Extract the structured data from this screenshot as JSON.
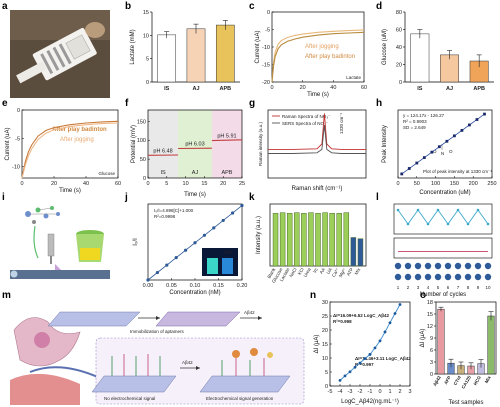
{
  "figure": {
    "panel_letters": [
      "a",
      "b",
      "c",
      "d",
      "e",
      "f",
      "g",
      "h",
      "i",
      "j",
      "k",
      "l",
      "m",
      "n",
      "o"
    ]
  },
  "colors": {
    "peach": "#f7d3b6",
    "gold": "#e8c25a",
    "orange": "#f0a45a",
    "olive": "#7ea03c",
    "blue": "#2e5a98",
    "pink": "#e89aa0",
    "lavender": "#c0bce0",
    "green_bar": "#9ccf5a"
  },
  "panels": {
    "b": {
      "ylabel": "Lactate (mM)",
      "chart_data": {
        "type": "bar",
        "categories": [
          "IS",
          "AJ",
          "APB"
        ],
        "values": [
          10.1,
          11.4,
          12.2
        ],
        "errors": [
          0.7,
          1.0,
          1.0
        ],
        "ylim": [
          0,
          15
        ],
        "yticks": [
          "0",
          "5",
          "10",
          "15"
        ],
        "ylabel": "Lactate (mM)"
      }
    },
    "c": {
      "xlabel": "Time (s)",
      "ylabel": "Current (uA)",
      "corner_label": "Lactate",
      "annotations": [
        "After jogging",
        "After play badinton"
      ],
      "chart_data": {
        "type": "line",
        "xlim": [
          0,
          60
        ],
        "xticks": [
          "0",
          "20",
          "40",
          "60"
        ],
        "ylim": [
          -20,
          0
        ],
        "yticks": [
          "-20",
          "-15",
          "-10",
          "-5",
          "0"
        ],
        "series": [
          {
            "x": [
              0,
              1,
              2,
              4,
              6,
              10,
              15,
              20,
              30,
              40,
              50,
              60
            ],
            "y": [
              -20,
              -14.5,
              -11.5,
              -9.2,
              -8.2,
              -7.3,
              -6.7,
              -6.3,
              -5.8,
              -5.5,
              -5.3,
              -5.1
            ]
          },
          {
            "x": [
              0,
              1,
              2,
              4,
              6,
              10,
              15,
              20,
              30,
              40,
              50,
              60
            ],
            "y": [
              -20,
              -15.5,
              -12.8,
              -10.5,
              -9.4,
              -8.4,
              -7.7,
              -7.2,
              -6.6,
              -6.2,
              -6.0,
              -5.8
            ]
          }
        ]
      }
    },
    "d": {
      "ylabel": "Glucose (uM)",
      "chart_data": {
        "type": "bar",
        "categories": [
          "IS",
          "AJ",
          "APB"
        ],
        "values": [
          55,
          31,
          24
        ],
        "errors": [
          5,
          5,
          7
        ],
        "ylim": [
          0,
          80
        ],
        "yticks": [
          "0",
          "20",
          "40",
          "60",
          "80"
        ],
        "ylabel": "Glucose (uM)"
      }
    },
    "e": {
      "xlabel": "Time (s)",
      "ylabel": "Current (uA)",
      "corner_label": "Glucose",
      "annotations": [
        "After play badinton",
        "After jogging"
      ],
      "chart_data": {
        "type": "line",
        "xlim": [
          0,
          60
        ],
        "xticks": [
          "0",
          "20",
          "40",
          "60"
        ],
        "ylim": [
          -12,
          0
        ],
        "yticks": [
          "0",
          "-5",
          "-10"
        ],
        "series": [
          {
            "x": [
              0,
              2,
              4,
              6,
              10,
              15,
              20,
              30,
              40,
              50,
              60
            ],
            "y": [
              -12,
              -9.2,
              -7.4,
              -6.2,
              -4.6,
              -3.6,
              -3.1,
              -2.6,
              -2.3,
              -2.1,
              -2.0
            ]
          },
          {
            "x": [
              0,
              2,
              4,
              6,
              10,
              15,
              20,
              30,
              40,
              50,
              60
            ],
            "y": [
              -12,
              -9.8,
              -8.1,
              -6.9,
              -5.2,
              -4.1,
              -3.5,
              -2.9,
              -2.6,
              -2.4,
              -2.3
            ]
          }
        ]
      }
    },
    "f": {
      "xlabel": "Time (s)",
      "ylabel": "Potential (mV)",
      "segments": [
        "IS",
        "AJ",
        "APB"
      ],
      "ph_labels": [
        "pH 6.48",
        "pH 6.03",
        "pH 5.91"
      ],
      "chart_data": {
        "type": "line",
        "xlim": [
          0,
          25
        ],
        "xticks": [
          "0",
          "5",
          "10",
          "15",
          "20",
          "25"
        ],
        "ylim": [
          0,
          180
        ],
        "yticks": [
          "0",
          "50",
          "100",
          "150"
        ],
        "series": [
          {
            "x": [
              0,
              8
            ],
            "y": [
              60,
              61
            ]
          },
          {
            "x": [
              8,
              17
            ],
            "y": [
              78,
              79
            ]
          },
          {
            "x": [
              17,
              25
            ],
            "y": [
              99,
              101
            ]
          }
        ]
      }
    },
    "g": {
      "xlabel": "Raman shift (cm⁻¹)",
      "ylabel": "Raman intensity (a.u.)",
      "legend": [
        "Raman Spectra of NO₃⁻",
        "SERS Spectra of NO₃⁻"
      ],
      "peak_label": "1330 cm⁻¹",
      "chart_data": {
        "type": "line",
        "xlim": [
          1100,
          1500
        ],
        "ylim": [
          0,
          1
        ],
        "series": [
          {
            "name": "Raman Spectra of NO₃⁻",
            "x": [
              1100,
              1200,
              1300,
              1320,
              1330,
              1340,
              1360,
              1400,
              1500
            ],
            "y": [
              0.42,
              0.42,
              0.43,
              0.5,
              0.95,
              0.5,
              0.43,
              0.42,
              0.42
            ]
          },
          {
            "name": "SERS Spectra of NO₃⁻",
            "x": [
              1100,
              1200,
              1300,
              1320,
              1330,
              1340,
              1360,
              1400,
              1500
            ],
            "y": [
              0.36,
              0.36,
              0.37,
              0.42,
              0.78,
              0.42,
              0.37,
              0.36,
              0.36
            ]
          }
        ]
      }
    },
    "h": {
      "xlabel": "Concentration (uM)",
      "ylabel": "Peak Intensity",
      "fit_text": [
        "y = 124.17x - 126.27",
        "R² = 0.9903",
        "SD = 2.649"
      ],
      "caption": "Plot of peak intensity at 1330 cm⁻¹",
      "chart_data": {
        "type": "scatter",
        "xlim": [
          0,
          250
        ],
        "xticks": [
          "0",
          "50",
          "100",
          "150",
          "200",
          "250"
        ],
        "ylim": [
          0,
          1
        ],
        "x": [
          10,
          30,
          50,
          70,
          90,
          110,
          130,
          150,
          170,
          190,
          210,
          230
        ],
        "y": [
          0.06,
          0.14,
          0.22,
          0.3,
          0.38,
          0.46,
          0.54,
          0.62,
          0.7,
          0.78,
          0.86,
          0.94
        ]
      }
    },
    "j": {
      "xlabel": "Concentration (nM)",
      "ylabel": "I₀/I",
      "fit_text": [
        "I₀/I=4.898[C]+1.000",
        "R²=0.9998"
      ],
      "inset_label": "ATP",
      "chart_data": {
        "type": "scatter",
        "xlim": [
          0,
          0.2
        ],
        "xticks": [
          "0.00",
          "0.05",
          "0.10",
          "0.15",
          "0.20"
        ],
        "ylim": [
          1,
          2
        ],
        "x": [
          0.0,
          0.02,
          0.04,
          0.06,
          0.08,
          0.1,
          0.12,
          0.14,
          0.16,
          0.18,
          0.2
        ],
        "y": [
          1.0,
          1.098,
          1.196,
          1.294,
          1.392,
          1.49,
          1.588,
          1.686,
          1.784,
          1.882,
          1.98
        ]
      }
    },
    "k": {
      "ylabel": "Intensity (a.u.)",
      "chart_data": {
        "type": "bar",
        "categories": [
          "Blank",
          "Glucose",
          "Lactate",
          "NaCl",
          "KCl",
          "Urea",
          "Vc",
          "AA",
          "UA",
          "Ca²⁺",
          "Mg²⁺",
          "ATP",
          "Mix"
        ],
        "values": [
          0.85,
          0.86,
          0.85,
          0.86,
          0.85,
          0.86,
          0.85,
          0.86,
          0.85,
          0.85,
          0.86,
          0.46,
          0.44
        ],
        "ylim": [
          0,
          1
        ]
      }
    },
    "l": {
      "xlabel": "Number of cycles",
      "chart_data": {
        "type": "line",
        "x": [
          1,
          2,
          3,
          4,
          5,
          6,
          7,
          8,
          9,
          10
        ],
        "series": [
          {
            "values": [
              1,
              0.3,
              1,
              0.3,
              1,
              0.3,
              1,
              0.3,
              1,
              0.3
            ]
          },
          {
            "values": [
              0.2,
              0.2,
              0.2,
              0.2,
              0.2,
              0.2,
              0.2,
              0.2,
              0.2,
              0.2
            ]
          }
        ]
      }
    },
    "m": {
      "labels": [
        "Immobilization of aptamers",
        "Aβ42",
        "No electrochemical signal",
        "Aβ42",
        "Electrochemical signal generation"
      ]
    },
    "n": {
      "xlabel": "LogC_Aβ42(ng.mL⁻¹)",
      "ylabel": "ΔI (μA)",
      "fit_text_1": [
        "ΔI=16.09+6.52 LogC_Aβ42",
        "R²=0.998"
      ],
      "fit_text_2": [
        "ΔI=14.46+3.11 LogC_Aβ42",
        "R²=0.997"
      ],
      "chart_data": {
        "type": "scatter",
        "xlim": [
          -5,
          3
        ],
        "xticks": [
          "-5",
          "-4",
          "-3",
          "-2",
          "-1",
          "0",
          "1",
          "2",
          "3"
        ],
        "ylim": [
          0,
          30
        ],
        "yticks": [
          "0",
          "5",
          "10",
          "15",
          "20",
          "25",
          "30"
        ],
        "series": [
          {
            "x": [
              -4,
              -3.5,
              -3,
              -2.5,
              -2,
              -1.5,
              -1
            ],
            "y": [
              2,
              3.6,
              5.1,
              6.7,
              8.2,
              9.8,
              11.3
            ]
          },
          {
            "x": [
              -1,
              -0.5,
              0,
              0.5,
              1,
              1.5,
              2
            ],
            "y": [
              11.3,
              13.6,
              16.1,
              19.3,
              22.6,
              25.9,
              29.1
            ]
          }
        ]
      }
    },
    "o": {
      "xlabel": "Test samples",
      "ylabel": "ΔI (μA)",
      "chart_data": {
        "type": "bar",
        "categories": [
          "Aβ42",
          "AFP",
          "CTnI",
          "CA125",
          "HCG",
          "Mix"
        ],
        "values": [
          16.2,
          2.7,
          2.1,
          2.0,
          2.6,
          14.5
        ],
        "errors": [
          0.5,
          1.0,
          0.9,
          0.8,
          1.0,
          1.1
        ],
        "ylim": [
          0,
          18
        ],
        "yticks": [
          "0",
          "3",
          "6",
          "9",
          "12",
          "15",
          "18"
        ]
      }
    }
  }
}
